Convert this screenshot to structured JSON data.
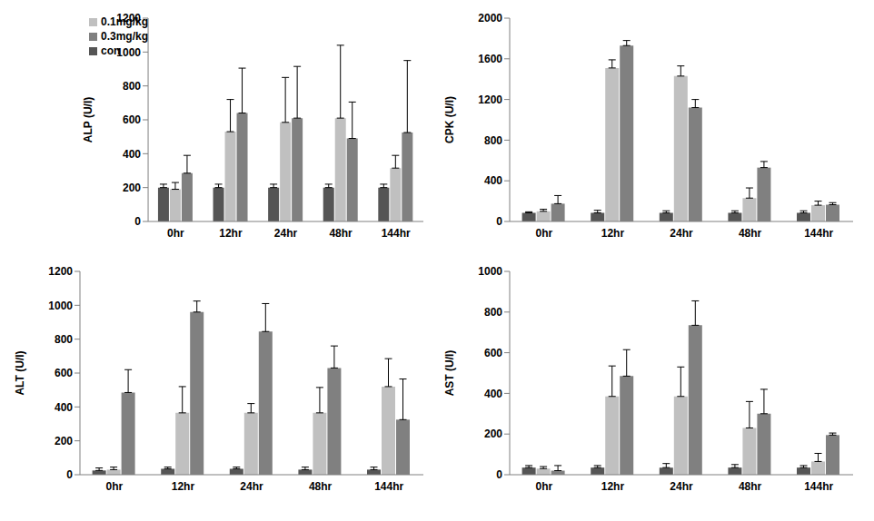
{
  "chart_data": [
    {
      "type": "bar",
      "y_label": "ALP (U/l)",
      "categories": [
        "0hr",
        "12hr",
        "24hr",
        "48hr",
        "144hr"
      ],
      "ylim": [
        0,
        1200
      ],
      "yticks": [
        0,
        200,
        400,
        600,
        800,
        1000,
        1200
      ],
      "grid": false,
      "legend": "upper left",
      "series": [
        {
          "name": "con",
          "color": "#555555",
          "values": [
            200,
            200,
            200,
            200,
            200
          ],
          "errors": [
            20,
            20,
            20,
            20,
            20
          ]
        },
        {
          "name": "0.1mg/kg",
          "color": "#c0c0c0",
          "values": [
            190,
            530,
            585,
            610,
            315
          ],
          "errors": [
            40,
            190,
            265,
            430,
            75
          ]
        },
        {
          "name": "0.3mg/kg",
          "color": "#808080",
          "values": [
            285,
            640,
            610,
            490,
            525
          ],
          "errors": [
            105,
            265,
            305,
            215,
            425
          ]
        }
      ]
    },
    {
      "type": "bar",
      "y_label": "CPK (U/l)",
      "categories": [
        "0hr",
        "12hr",
        "24hr",
        "48hr",
        "144hr"
      ],
      "ylim": [
        0,
        2000
      ],
      "yticks": [
        0,
        400,
        800,
        1200,
        1600,
        2000
      ],
      "grid": false,
      "series": [
        {
          "name": "con",
          "color": "#555555",
          "values": [
            85,
            85,
            85,
            85,
            85
          ],
          "errors": [
            10,
            25,
            20,
            20,
            20
          ]
        },
        {
          "name": "0.1mg/kg",
          "color": "#c0c0c0",
          "values": [
            100,
            1510,
            1430,
            230,
            160
          ],
          "errors": [
            20,
            80,
            100,
            100,
            40
          ]
        },
        {
          "name": "0.3mg/kg",
          "color": "#808080",
          "values": [
            175,
            1730,
            1120,
            530,
            165
          ],
          "errors": [
            80,
            50,
            80,
            60,
            20
          ]
        }
      ]
    },
    {
      "type": "bar",
      "y_label": "ALT (U/l)",
      "categories": [
        "0hr",
        "12hr",
        "24hr",
        "48hr",
        "144hr"
      ],
      "ylim": [
        0,
        1200
      ],
      "yticks": [
        0,
        200,
        400,
        600,
        800,
        1000,
        1200
      ],
      "grid": false,
      "series": [
        {
          "name": "con",
          "color": "#555555",
          "values": [
            25,
            35,
            35,
            30,
            30
          ],
          "errors": [
            15,
            10,
            10,
            15,
            15
          ]
        },
        {
          "name": "0.1mg/kg",
          "color": "#c0c0c0",
          "values": [
            30,
            365,
            365,
            365,
            520
          ],
          "errors": [
            15,
            155,
            55,
            150,
            165
          ]
        },
        {
          "name": "0.3mg/kg",
          "color": "#808080",
          "values": [
            485,
            960,
            845,
            630,
            325
          ],
          "errors": [
            135,
            65,
            165,
            130,
            240
          ]
        }
      ]
    },
    {
      "type": "bar",
      "y_label": "AST (U/l)",
      "categories": [
        "0hr",
        "12hr",
        "24hr",
        "48hr",
        "144hr"
      ],
      "ylim": [
        0,
        1000
      ],
      "yticks": [
        0,
        200,
        400,
        600,
        800,
        1000
      ],
      "grid": false,
      "series": [
        {
          "name": "con",
          "color": "#555555",
          "values": [
            35,
            35,
            35,
            35,
            35
          ],
          "errors": [
            10,
            10,
            20,
            15,
            10
          ]
        },
        {
          "name": "0.1mg/kg",
          "color": "#c0c0c0",
          "values": [
            30,
            385,
            385,
            230,
            65
          ],
          "errors": [
            10,
            150,
            145,
            130,
            40
          ]
        },
        {
          "name": "0.3mg/kg",
          "color": "#808080",
          "values": [
            20,
            485,
            735,
            300,
            195
          ],
          "errors": [
            25,
            130,
            120,
            120,
            10
          ]
        }
      ]
    }
  ]
}
